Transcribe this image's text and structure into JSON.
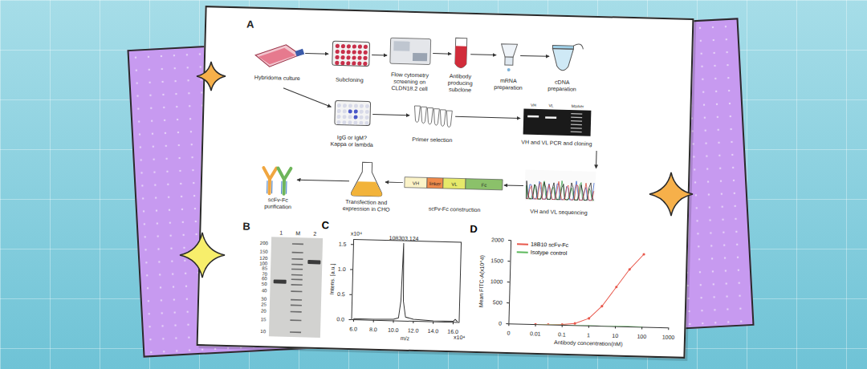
{
  "panel_A": {
    "label": "A",
    "steps": [
      {
        "id": "hybridoma",
        "label_lines": [
          "Hybridoma culture"
        ]
      },
      {
        "id": "subcloning",
        "label_lines": [
          "Subcloning"
        ]
      },
      {
        "id": "flow",
        "label_lines": [
          "Flow cytometry",
          "screening on",
          "CLDN18.2 cell"
        ]
      },
      {
        "id": "subclone",
        "label_lines": [
          "Antibody",
          "producing",
          "subclone"
        ]
      },
      {
        "id": "mrna",
        "label_lines": [
          "mRNA",
          "preparation"
        ]
      },
      {
        "id": "cdna",
        "label_lines": [
          "cDNA",
          "preparation"
        ]
      },
      {
        "id": "isotype",
        "label_lines": [
          "IgG or IgM?",
          "Kappa or lambda"
        ]
      },
      {
        "id": "primer",
        "label_lines": [
          "Primer selection"
        ]
      },
      {
        "id": "pcr",
        "label_lines": [
          "VH and VL PCR and cloning"
        ]
      },
      {
        "id": "sequencing",
        "label_lines": [
          "VH and VL sequencing"
        ]
      },
      {
        "id": "construction",
        "label_lines": [
          "scFv-Fc construction"
        ]
      },
      {
        "id": "transfection",
        "label_lines": [
          "Transfection and",
          "expression in CHO"
        ]
      },
      {
        "id": "purification",
        "label_lines": [
          "scFv-Fc",
          "purification"
        ]
      }
    ],
    "gel_lanes": [
      "VH",
      "VL",
      "Marker"
    ],
    "construct": [
      "VH",
      "linker",
      "VL",
      "Fc"
    ]
  },
  "panel_B": {
    "label": "B",
    "ladder_kda": [
      200,
      150,
      120,
      100,
      85,
      70,
      60,
      50,
      40,
      30,
      25,
      20,
      15,
      10
    ],
    "lanes": [
      "1",
      "M",
      "2"
    ],
    "lane_bands": [
      {
        "lane": "1",
        "kda": 55
      },
      {
        "lane": "2",
        "kda": 110
      }
    ]
  },
  "chart_data": [
    {
      "panel": "C",
      "type": "line",
      "color": "#333333",
      "x": [
        6.0,
        8.0,
        10.0,
        10.5,
        10.7,
        10.8303,
        10.95,
        11.2,
        12.0,
        14.0,
        16.0,
        16.2,
        16.4
      ],
      "values": [
        0.02,
        0.02,
        0.03,
        0.06,
        0.4,
        1.55,
        0.4,
        0.08,
        0.04,
        0.02,
        0.02,
        0.06,
        0.02
      ],
      "xlim": [
        5.8,
        16.6
      ],
      "ylim": [
        0,
        1.6
      ],
      "xticks": [
        {
          "value": 6,
          "label": "6.0"
        },
        {
          "value": 8,
          "label": "8.0"
        },
        {
          "value": 10,
          "label": "10.0"
        },
        {
          "value": 12,
          "label": "12.0"
        },
        {
          "value": 14,
          "label": "14.0"
        },
        {
          "value": 16,
          "label": "16.0"
        }
      ],
      "yticks": [
        {
          "value": 0,
          "label": "0.0"
        },
        0.5,
        {
          "value": 1,
          "label": "1.0"
        },
        1.5
      ],
      "x_label": "m/z",
      "y_label": "Intens. [a.u.]",
      "x_multiplier": "x10⁴",
      "y_multiplier": "x10⁴",
      "annotations": [
        {
          "x": 10.8303,
          "y": 1.55,
          "text": "108303.124"
        }
      ]
    },
    {
      "panel": "D",
      "type": "line",
      "log": "x",
      "legend": "top-left",
      "x": [
        0.01,
        0.03,
        0.1,
        0.3,
        1,
        3,
        10,
        30,
        100
      ],
      "series": [
        {
          "name": "18B10 scFv-Fc",
          "color": "#e8584c",
          "marker": "circle",
          "values": [
            2,
            5,
            15,
            50,
            180,
            480,
            950,
            1380,
            1750
          ]
        },
        {
          "name": "Isotype control",
          "color": "#5cb85c",
          "values": [
            2,
            2,
            3,
            3,
            4,
            5,
            6,
            8,
            10
          ]
        }
      ],
      "xlim": [
        0.001,
        1000
      ],
      "ylim": [
        0,
        2000
      ],
      "xticks": [
        {
          "value": 0.001,
          "label": "0"
        },
        0.01,
        0.1,
        1,
        10,
        100,
        1000
      ],
      "yticks": [
        0,
        500,
        1000,
        1500,
        2000
      ],
      "x_label": "Antibody concentration(nM)",
      "y_label": "Mean FITC-A(x10^4)"
    }
  ]
}
